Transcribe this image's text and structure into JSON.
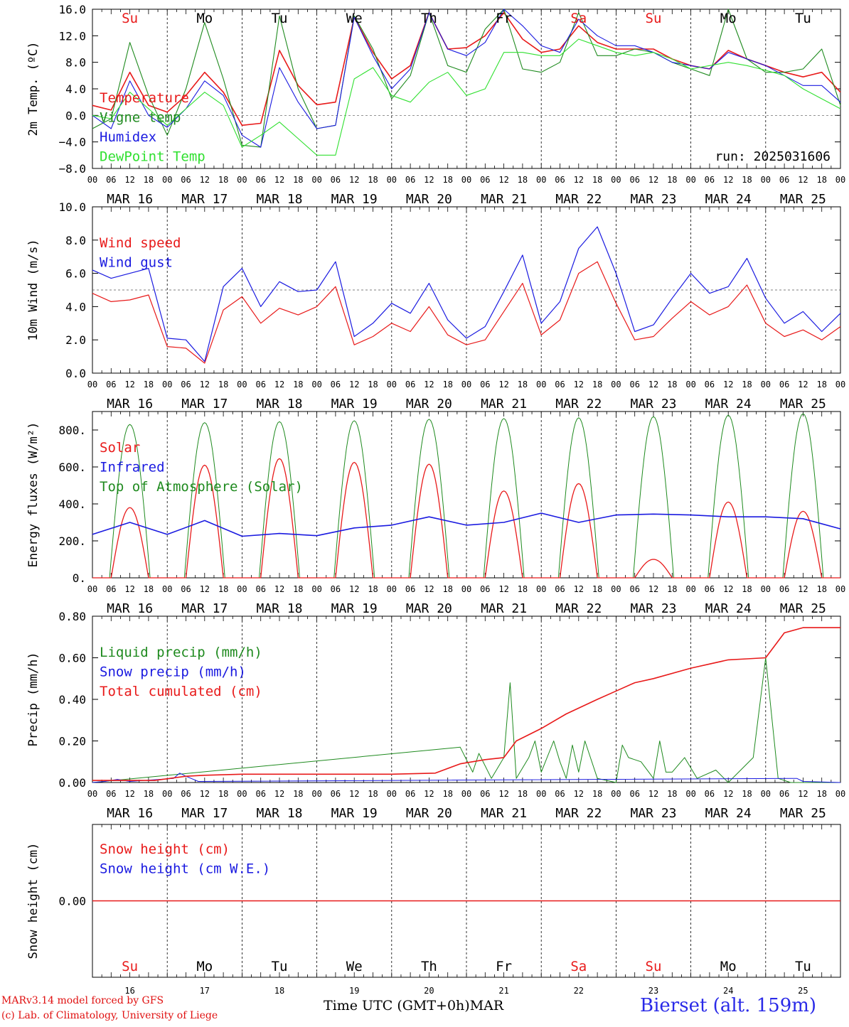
{
  "days": [
    {
      "abbr": "Su",
      "num": "16",
      "date": "MAR 16",
      "weekend": true
    },
    {
      "abbr": "Mo",
      "num": "17",
      "date": "MAR 17",
      "weekend": false
    },
    {
      "abbr": "Tu",
      "num": "18",
      "date": "MAR 18",
      "weekend": false
    },
    {
      "abbr": "We",
      "num": "19",
      "date": "MAR 19",
      "weekend": false
    },
    {
      "abbr": "Th",
      "num": "20",
      "date": "MAR 20",
      "weekend": false
    },
    {
      "abbr": "Fr",
      "num": "21",
      "date": "MAR 21",
      "weekend": false
    },
    {
      "abbr": "Sa",
      "num": "22",
      "date": "MAR 22",
      "weekend": true
    },
    {
      "abbr": "Su",
      "num": "23",
      "date": "MAR 23",
      "weekend": true
    },
    {
      "abbr": "Mo",
      "num": "24",
      "date": "MAR 24",
      "weekend": false
    },
    {
      "abbr": "Tu",
      "num": "25",
      "date": "MAR 25",
      "weekend": false
    }
  ],
  "hour_ticks": [
    "00",
    "06",
    "12",
    "18"
  ],
  "hour_tick_end": "00",
  "colors": {
    "red": "#e81a1a",
    "green": "#1e8a1e",
    "blue": "#1a1ae0",
    "lime": "#30e030",
    "weekend": "#e81a1a"
  },
  "footer": {
    "credit_line1": "MARv3.14 model forced by GFS",
    "credit_line2": "(c) Lab. of Climatology, University of Liege",
    "x_axis_title": "Time UTC (GMT+0h)",
    "month": "MAR",
    "station": "Bierset (alt. 159m)"
  },
  "chart_data": [
    {
      "type": "line",
      "id": "temp",
      "ylabel": "2m Temp. (ºC)",
      "ylim": [
        -8,
        16
      ],
      "yticks": [
        -8,
        -4,
        0,
        4,
        8,
        12,
        16
      ],
      "ytick_labels": [
        "−8.0",
        "−4.0",
        "0.0",
        "4.0",
        "8.0",
        "12.0",
        "16.0"
      ],
      "ref_line": 0,
      "annotation": "run: 2025031606",
      "x_hours": [
        0,
        6,
        12,
        18,
        24,
        30,
        36,
        42,
        48,
        54,
        60,
        66,
        72,
        78,
        84,
        90,
        96,
        102,
        108,
        114,
        120,
        126,
        132,
        138,
        144,
        150,
        156,
        162,
        168,
        174,
        180,
        186,
        192,
        198,
        204,
        210,
        216,
        222,
        228,
        234,
        240
      ],
      "series": [
        {
          "name": "Temperature",
          "color": "red",
          "values": [
            1.5,
            0.8,
            6.5,
            1.5,
            0.5,
            3,
            6.5,
            3.5,
            -1.5,
            -1.2,
            9.8,
            4.5,
            1.6,
            2,
            14.8,
            9.5,
            5.5,
            7.5,
            15.5,
            10,
            10.2,
            12,
            15.5,
            11.5,
            9.5,
            10,
            13.5,
            11,
            10,
            10,
            10,
            8.5,
            7.5,
            7,
            9.8,
            8.5,
            7.5,
            6.5,
            5.8,
            6.5,
            3.5
          ]
        },
        {
          "name": "Vigne temp",
          "color": "green",
          "values": [
            -2,
            -0.5,
            11,
            3,
            -3,
            4,
            14,
            5.5,
            -4.5,
            -4.8,
            15,
            4,
            -2,
            -1.5,
            15,
            10,
            2.5,
            6,
            15.5,
            7.5,
            6.5,
            13,
            16,
            7,
            6.5,
            8,
            15.5,
            9,
            9,
            10,
            9.5,
            8,
            7,
            6,
            16,
            8.5,
            6.5,
            6.5,
            7,
            10,
            1.5
          ]
        },
        {
          "name": "Humidex",
          "color": "blue",
          "values": [
            0,
            -2,
            5.2,
            0,
            -1.8,
            1,
            5.2,
            3,
            -3,
            -4.8,
            7.2,
            2,
            -2,
            -1.5,
            14.8,
            9,
            4,
            7,
            15.5,
            10,
            9,
            11,
            16,
            13.5,
            10.5,
            9.5,
            14.5,
            12,
            10.5,
            10.5,
            9.5,
            8,
            7.5,
            7,
            9.5,
            8.5,
            7.5,
            6,
            4.5,
            4.5,
            2
          ]
        },
        {
          "name": "DewPoint Temp",
          "color": "lime",
          "values": [
            0,
            -0.5,
            3.5,
            1,
            -1.5,
            1,
            3.5,
            1.5,
            -4.8,
            -3,
            -1,
            -3.5,
            -6,
            -6,
            5.5,
            7.2,
            3,
            2,
            5,
            6.5,
            3,
            4,
            9.5,
            9.5,
            9,
            9,
            11.5,
            10.5,
            9.5,
            9,
            9.5,
            8.5,
            7,
            7.5,
            8,
            7.5,
            6.8,
            6,
            4,
            2.5,
            1
          ]
        }
      ],
      "legend": [
        "Temperature",
        "Vigne temp",
        "Humidex",
        "DewPoint Temp"
      ]
    },
    {
      "type": "line",
      "id": "wind",
      "ylabel": "10m Wind (m/s)",
      "ylim": [
        0,
        10
      ],
      "yticks": [
        0,
        2,
        4,
        6,
        8,
        10
      ],
      "ytick_labels": [
        "0.0",
        "2.0",
        "4.0",
        "6.0",
        "8.0",
        "10.0"
      ],
      "ref_line": 5,
      "x_hours": [
        0,
        6,
        12,
        18,
        24,
        30,
        36,
        42,
        48,
        54,
        60,
        66,
        72,
        78,
        84,
        90,
        96,
        102,
        108,
        114,
        120,
        126,
        132,
        138,
        144,
        150,
        156,
        162,
        168,
        174,
        180,
        186,
        192,
        198,
        204,
        210,
        216,
        222,
        228,
        234,
        240
      ],
      "series": [
        {
          "name": "Wind speed",
          "color": "red",
          "values": [
            4.8,
            4.3,
            4.4,
            4.7,
            1.6,
            1.5,
            0.6,
            3.8,
            4.6,
            3,
            3.9,
            3.5,
            4,
            5.2,
            1.7,
            2.2,
            3,
            2.5,
            4,
            2.3,
            1.7,
            2,
            3.7,
            5.4,
            2.3,
            3.2,
            6,
            6.7,
            4.2,
            2,
            2.2,
            3.3,
            4.3,
            3.5,
            4,
            5.3,
            3,
            2.2,
            2.6,
            2,
            2.8
          ]
        },
        {
          "name": "Wind gust",
          "color": "blue",
          "values": [
            6.2,
            5.7,
            6,
            6.3,
            2.1,
            2,
            0.7,
            5.2,
            6.3,
            4,
            5.5,
            4.9,
            5,
            6.7,
            2.2,
            3,
            4.2,
            3.6,
            5.4,
            3.2,
            2.1,
            2.8,
            4.9,
            7.1,
            3,
            4.3,
            7.5,
            8.8,
            6,
            2.5,
            2.9,
            4.5,
            6,
            4.8,
            5.2,
            6.9,
            4.5,
            3,
            3.7,
            2.5,
            3.6
          ]
        }
      ],
      "legend": [
        "Wind speed",
        "Wind gust"
      ]
    },
    {
      "type": "line",
      "id": "flux",
      "ylabel": "Energy fluxes (W/m2)",
      "ylim": [
        0,
        900
      ],
      "yticks": [
        0,
        200,
        400,
        600,
        800
      ],
      "ytick_labels": [
        "0.",
        "200.",
        "400.",
        "600.",
        "800."
      ],
      "solar_peaks": [
        380,
        610,
        645,
        625,
        615,
        470,
        510,
        100,
        410,
        360
      ],
      "toa_peaks": [
        830,
        840,
        845,
        850,
        858,
        862,
        866,
        872,
        880,
        888
      ],
      "infrared_hours": [
        0,
        12,
        24,
        36,
        48,
        60,
        72,
        84,
        96,
        108,
        120,
        132,
        144,
        156,
        168,
        180,
        192,
        204,
        216,
        228,
        240
      ],
      "infrared_values": [
        235,
        300,
        235,
        310,
        225,
        240,
        228,
        270,
        285,
        330,
        285,
        300,
        350,
        300,
        340,
        345,
        340,
        330,
        330,
        320,
        265
      ],
      "series_names": [
        "Solar",
        "Infrared",
        "Top of Atmosphere (Solar)"
      ],
      "legend": [
        "Solar",
        "Infrared",
        "Top of Atmosphere (Solar)"
      ]
    },
    {
      "type": "line",
      "id": "precip",
      "ylabel": "Precip (mm/h)",
      "ylim": [
        0,
        0.8
      ],
      "yticks": [
        0,
        0.2,
        0.4,
        0.6,
        0.8
      ],
      "ytick_labels": [
        "0.00",
        "0.20",
        "0.40",
        "0.60",
        "0.80"
      ],
      "cumul_hours": [
        0,
        10,
        20,
        30,
        36,
        48,
        96,
        110,
        118,
        126,
        132,
        136,
        144,
        152,
        162,
        168,
        174,
        180,
        192,
        204,
        210,
        216,
        222,
        228,
        234,
        240
      ],
      "cumul_values": [
        0.01,
        0.01,
        0.01,
        0.03,
        0.035,
        0.04,
        0.04,
        0.045,
        0.09,
        0.11,
        0.12,
        0.2,
        0.26,
        0.33,
        0.4,
        0.44,
        0.48,
        0.5,
        0.55,
        0.59,
        0.595,
        0.6,
        0.72,
        0.745,
        0.745,
        0.745
      ],
      "liquid_hours": [
        118,
        122,
        124,
        128,
        132,
        134,
        136,
        140,
        142,
        144,
        148,
        150,
        152,
        154,
        156,
        158,
        162,
        168,
        170,
        172,
        176,
        180,
        182,
        184,
        186,
        190,
        194,
        200,
        204,
        212,
        216,
        220,
        224
      ],
      "liquid_values": [
        0.17,
        0.05,
        0.14,
        0.02,
        0.12,
        0.48,
        0.02,
        0.12,
        0.2,
        0.05,
        0.2,
        0.1,
        0.02,
        0.18,
        0.05,
        0.2,
        0.02,
        0.0,
        0.18,
        0.12,
        0.1,
        0.02,
        0.2,
        0.05,
        0.05,
        0.12,
        0.02,
        0.06,
        0.0,
        0.12,
        0.6,
        0.02,
        0.0
      ],
      "snow_hours": [
        4,
        8,
        12,
        26,
        28,
        30,
        34,
        224,
        226,
        228
      ],
      "snow_values": [
        0.005,
        0.015,
        0.005,
        0.02,
        0.045,
        0.03,
        0.005,
        0.02,
        0.02,
        0.005
      ],
      "legend": [
        "Liquid precip (mm/h)",
        "Snow precip (mm/h)",
        "Total cumulated (cm)"
      ]
    },
    {
      "type": "line",
      "id": "snow",
      "ylabel": "Snow height (cm)",
      "ylim": [
        -1,
        1
      ],
      "yticks": [
        0
      ],
      "ytick_labels": [
        "0.00"
      ],
      "series": [
        {
          "name": "Snow height (cm)",
          "color": "red",
          "values": [
            0,
            0
          ]
        },
        {
          "name": "Snow height (cm W.E.)",
          "color": "blue",
          "values": [
            0,
            0
          ]
        }
      ],
      "legend": [
        "Snow height (cm)",
        "Snow height (cm W.E.)"
      ]
    }
  ]
}
